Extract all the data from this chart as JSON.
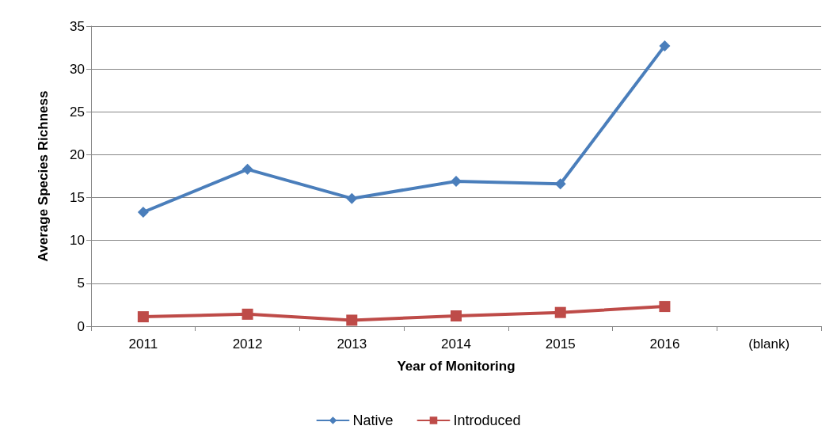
{
  "chart_data": {
    "type": "line",
    "xlabel": "Year of Monitoring",
    "ylabel": "Average Species Richness",
    "categories": [
      "2011",
      "2012",
      "2013",
      "2014",
      "2015",
      "2016",
      "(blank)"
    ],
    "series": [
      {
        "name": "Native",
        "color": "#4a7ebb",
        "marker": "diamond",
        "values": [
          13.3,
          18.3,
          14.9,
          16.9,
          16.6,
          32.7,
          null
        ]
      },
      {
        "name": "Introduced",
        "color": "#be4b48",
        "marker": "square",
        "values": [
          1.1,
          1.4,
          0.7,
          1.2,
          1.6,
          2.3,
          null
        ]
      }
    ],
    "ylim": [
      0,
      35
    ],
    "yticks": [
      0,
      5,
      10,
      15,
      20,
      25,
      30,
      35
    ],
    "grid": "y",
    "legend": "bottom"
  }
}
